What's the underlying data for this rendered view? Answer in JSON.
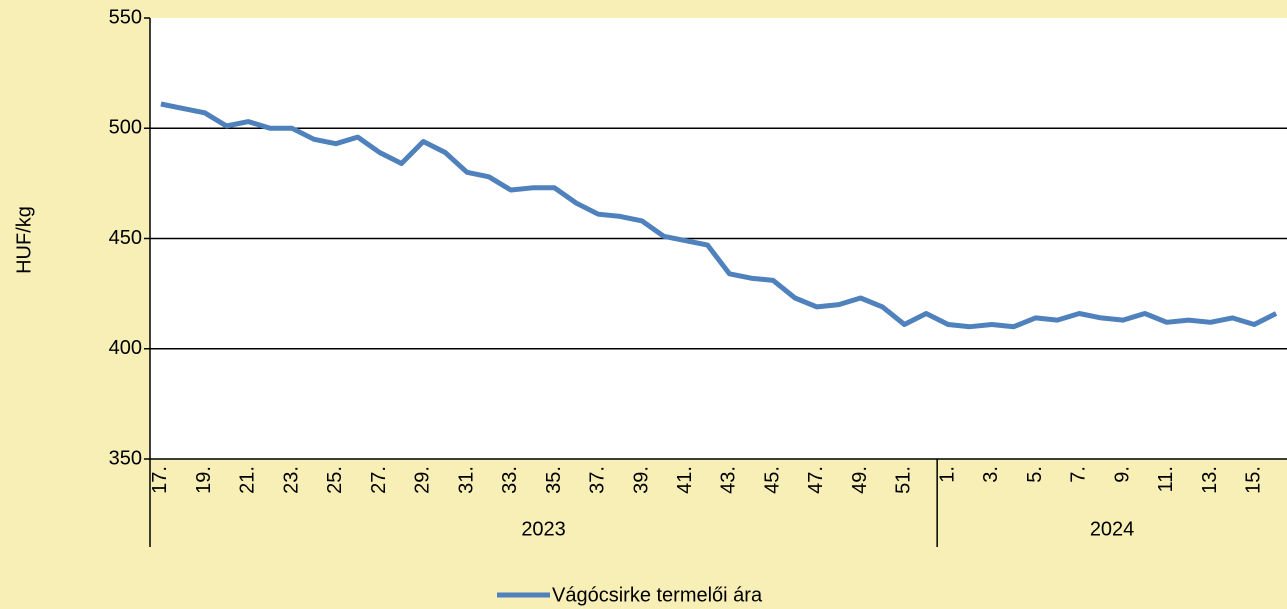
{
  "chart_data": {
    "type": "line",
    "y_label": "HUF/kg",
    "categories": [
      "17.",
      null,
      "19.",
      null,
      "21.",
      null,
      "23.",
      null,
      "25.",
      null,
      "27.",
      null,
      "29.",
      null,
      "31.",
      null,
      "33.",
      null,
      "35.",
      null,
      "37.",
      null,
      "39.",
      null,
      "41.",
      null,
      "43.",
      null,
      "45.",
      null,
      "47.",
      null,
      "49.",
      null,
      "51.",
      null,
      "1.",
      null,
      "3.",
      null,
      "5.",
      null,
      "7.",
      null,
      "9.",
      null,
      "11.",
      null,
      "13.",
      null,
      "15.",
      null
    ],
    "groups": [
      {
        "label": "2023",
        "size": 36
      },
      {
        "label": "2024",
        "size": 16
      }
    ],
    "series": [
      {
        "name": "Vágócsirke termelői ára",
        "color": "#4f81bd",
        "values": [
          511,
          509,
          507,
          501,
          503,
          500,
          500,
          495,
          493,
          496,
          489,
          484,
          494,
          489,
          480,
          478,
          472,
          473,
          473,
          466,
          461,
          460,
          458,
          451,
          449,
          447,
          434,
          432,
          431,
          423,
          419,
          420,
          423,
          419,
          411,
          416,
          411,
          410,
          411,
          410,
          414,
          413,
          416,
          414,
          413,
          416,
          412,
          413,
          412,
          414,
          411,
          416
        ]
      }
    ],
    "ylim": [
      350,
      550
    ],
    "yticks": [
      350,
      400,
      450,
      500,
      550
    ],
    "grid": true,
    "legend": "bottom"
  }
}
